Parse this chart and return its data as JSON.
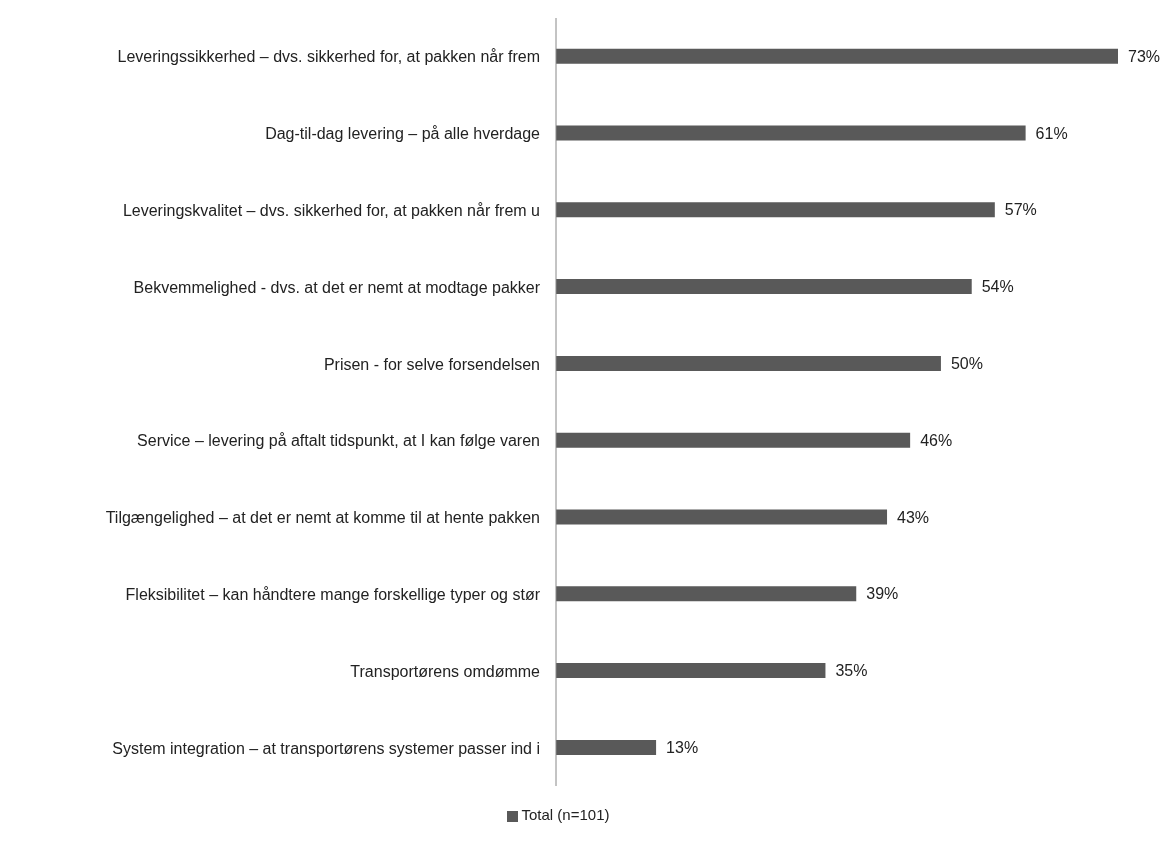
{
  "chart_data": {
    "type": "bar",
    "orientation": "horizontal",
    "categories": [
      "Leveringssikkerhed – dvs. sikkerhed for, at pakken når frem",
      "Dag-til-dag levering – på alle hverdage",
      "Leveringskvalitet – dvs. sikkerhed for, at pakken når frem u",
      "Bekvemmelighed - dvs. at det er nemt at modtage pakker",
      "Prisen - for selve forsendelsen",
      "Service – levering på aftalt tidspunkt, at I kan følge varen",
      "Tilgængelighed – at det er nemt at komme til at hente pakken",
      "Fleksibilitet – kan håndtere mange forskellige typer og stør",
      "Transportørens omdømme",
      "System integration – at transportørens systemer passer ind i"
    ],
    "series": [
      {
        "name": "Total (n=101)",
        "color": "#595959",
        "values": [
          73,
          61,
          57,
          54,
          50,
          46,
          43,
          39,
          35,
          13
        ],
        "value_labels": [
          "73%",
          "61%",
          "57%",
          "54%",
          "50%",
          "46%",
          "43%",
          "39%",
          "35%",
          "13%"
        ]
      }
    ],
    "legend": "bottom",
    "grid": false
  }
}
